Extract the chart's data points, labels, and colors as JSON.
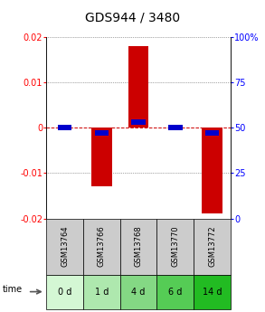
{
  "title": "GDS944 / 3480",
  "samples": [
    "GSM13764",
    "GSM13766",
    "GSM13768",
    "GSM13770",
    "GSM13772"
  ],
  "time_labels": [
    "0 d",
    "1 d",
    "4 d",
    "6 d",
    "14 d"
  ],
  "log_ratios": [
    0.0,
    -0.013,
    0.018,
    0.0,
    -0.019
  ],
  "percentile_ranks": [
    50,
    47,
    53,
    50,
    47
  ],
  "ylim": [
    -0.02,
    0.02
  ],
  "yticks_left": [
    -0.02,
    -0.01,
    0,
    0.01,
    0.02
  ],
  "yticks_right": [
    0,
    25,
    50,
    75,
    100
  ],
  "bar_color": "#cc0000",
  "percentile_color": "#0000cc",
  "bar_width": 0.55,
  "grid_color": "#555555",
  "zero_line_color": "#cc0000",
  "sample_bg_color": "#cccccc",
  "time_bg_colors": [
    "#d4f7d4",
    "#aee8ae",
    "#84d884",
    "#55cc55",
    "#22bb22"
  ],
  "legend_bar_color": "#cc0000",
  "legend_pct_color": "#0000cc",
  "title_fontsize": 10,
  "tick_fontsize": 7,
  "label_fontsize": 7
}
